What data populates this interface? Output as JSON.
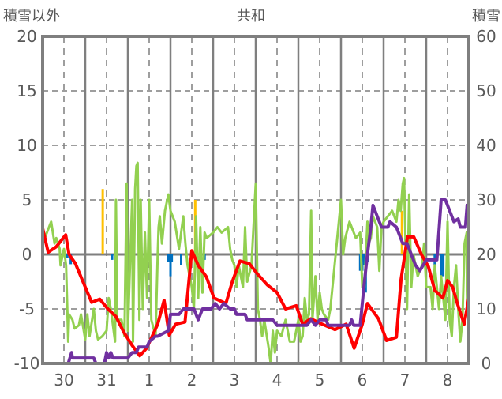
{
  "chart_data": {
    "type": "line",
    "title": "共和",
    "ylabel_left": "積雪以外",
    "ylabel_right": "積雪",
    "ylim_left": [
      -10,
      20
    ],
    "ylim_right": [
      0,
      60
    ],
    "yticks_left": [
      "20",
      "15",
      "10",
      "5",
      "0",
      "-5",
      "-10"
    ],
    "yticks_right": [
      "60",
      "50",
      "40",
      "30",
      "20",
      "10",
      "0"
    ],
    "xlim_days": [
      0,
      10
    ],
    "x_tick_labels": [
      "30",
      "31",
      "1",
      "2",
      "3",
      "4",
      "5",
      "6",
      "7",
      "8"
    ],
    "grid": true,
    "colors": {
      "temperature": "#ff0000",
      "other": "#92d050",
      "snow": "#7030a0",
      "precip": "#0070c0",
      "sun": "#ffc000",
      "axis": "#7f7f7f"
    },
    "series": [
      {
        "name": "red-line",
        "axis": "left",
        "points": [
          [
            0,
            2.4
          ],
          [
            0.13,
            0.2
          ],
          [
            0.32,
            0.7
          ],
          [
            0.54,
            1.8
          ],
          [
            0.62,
            0
          ],
          [
            0.77,
            -0.85
          ],
          [
            1.0,
            -3
          ],
          [
            1.15,
            -4.4
          ],
          [
            1.34,
            -4.1
          ],
          [
            1.53,
            -5
          ],
          [
            1.72,
            -5.7
          ],
          [
            1.9,
            -7.1
          ],
          [
            2.1,
            -8.35
          ],
          [
            2.28,
            -9.3
          ],
          [
            2.44,
            -8.6
          ],
          [
            2.7,
            -6.4
          ],
          [
            2.85,
            -4.2
          ],
          [
            2.97,
            -7.4
          ],
          [
            3.12,
            -6.4
          ],
          [
            3.34,
            -6.2
          ],
          [
            3.5,
            0.35
          ],
          [
            3.65,
            -1
          ],
          [
            3.84,
            -2.05
          ],
          [
            4.02,
            -4
          ],
          [
            4.3,
            -4.5
          ],
          [
            4.45,
            -2.5
          ],
          [
            4.63,
            -0.6
          ],
          [
            4.85,
            -0.85
          ],
          [
            5.04,
            -1.8
          ],
          [
            5.27,
            -2.8
          ],
          [
            5.5,
            -3.5
          ],
          [
            5.7,
            -5
          ],
          [
            5.95,
            -4.7
          ],
          [
            6.1,
            -6.4
          ],
          [
            6.29,
            -5.9
          ],
          [
            6.56,
            -6.4
          ],
          [
            6.86,
            -6.9
          ],
          [
            7.12,
            -6.4
          ],
          [
            7.31,
            -8.6
          ],
          [
            7.5,
            -6.4
          ],
          [
            7.62,
            -4.5
          ],
          [
            7.88,
            -5.9
          ],
          [
            8.07,
            -7.9
          ],
          [
            8.3,
            -7.6
          ],
          [
            8.41,
            -2.3
          ],
          [
            8.56,
            1.6
          ],
          [
            8.71,
            1.6
          ],
          [
            8.9,
            -0.1
          ],
          [
            9.05,
            -1.1
          ],
          [
            9.2,
            -3.3
          ],
          [
            9.39,
            -4
          ],
          [
            9.5,
            -2.4
          ],
          [
            9.62,
            -3
          ],
          [
            9.73,
            -4.5
          ],
          [
            9.89,
            -6.4
          ],
          [
            10,
            -4
          ]
        ]
      },
      {
        "name": "green-line",
        "axis": "left",
        "points": [
          [
            0,
            1
          ],
          [
            0.1,
            2
          ],
          [
            0.2,
            3
          ],
          [
            0.28,
            1
          ],
          [
            0.32,
            1.5
          ],
          [
            0.4,
            0.5
          ],
          [
            0.42,
            -1
          ],
          [
            0.5,
            0.5
          ],
          [
            0.55,
            -1
          ],
          [
            0.6,
            -8
          ],
          [
            0.62,
            -5.5
          ],
          [
            0.7,
            -6
          ],
          [
            0.75,
            -6.8
          ],
          [
            0.85,
            -6.5
          ],
          [
            0.9,
            -5.5
          ],
          [
            1.0,
            -7.8
          ],
          [
            1.05,
            -5.5
          ],
          [
            1.1,
            -7.5
          ],
          [
            1.2,
            -5
          ],
          [
            1.25,
            -7
          ],
          [
            1.3,
            -7.8
          ],
          [
            1.4,
            -7.5
          ],
          [
            1.5,
            -7
          ],
          [
            1.55,
            -4
          ],
          [
            1.6,
            -5
          ],
          [
            1.7,
            -8
          ],
          [
            1.72,
            5
          ],
          [
            1.75,
            -6
          ],
          [
            1.85,
            -6
          ],
          [
            1.92,
            -7.5
          ],
          [
            1.97,
            6.5
          ],
          [
            2.0,
            -7
          ],
          [
            2.1,
            5
          ],
          [
            2.12,
            -8
          ],
          [
            2.17,
            6
          ],
          [
            2.2,
            8.1
          ],
          [
            2.23,
            8.4
          ],
          [
            2.27,
            -6
          ],
          [
            2.3,
            5
          ],
          [
            2.35,
            -5
          ],
          [
            2.4,
            2
          ],
          [
            2.45,
            -4
          ],
          [
            2.5,
            5
          ],
          [
            2.55,
            -6
          ],
          [
            2.65,
            -7.5
          ],
          [
            2.7,
            0
          ],
          [
            2.72,
            2.5
          ],
          [
            2.75,
            3.5
          ],
          [
            2.8,
            1
          ],
          [
            2.87,
            4
          ],
          [
            2.95,
            5.5
          ],
          [
            3.0,
            4
          ],
          [
            3.1,
            3
          ],
          [
            3.2,
            0.5
          ],
          [
            3.3,
            3.5
          ],
          [
            3.35,
            1
          ],
          [
            3.4,
            -1
          ],
          [
            3.45,
            -2
          ],
          [
            3.5,
            -3
          ],
          [
            3.55,
            -5
          ],
          [
            3.6,
            3.5
          ],
          [
            3.65,
            -4
          ],
          [
            3.7,
            2.5
          ],
          [
            3.75,
            -3.5
          ],
          [
            3.8,
            2
          ],
          [
            3.85,
            1.5
          ],
          [
            4.0,
            2
          ],
          [
            4.1,
            2.5
          ],
          [
            4.2,
            2
          ],
          [
            4.35,
            2.5
          ],
          [
            4.4,
            0.5
          ],
          [
            4.45,
            -0.5
          ],
          [
            4.5,
            -1
          ],
          [
            4.55,
            -3
          ],
          [
            4.6,
            -1
          ],
          [
            4.7,
            -3
          ],
          [
            4.75,
            2.5
          ],
          [
            4.8,
            -2.5
          ],
          [
            4.9,
            -1
          ],
          [
            5.0,
            6.5
          ],
          [
            5.05,
            -5
          ],
          [
            5.1,
            -6
          ],
          [
            5.15,
            -7.5
          ],
          [
            5.2,
            -6
          ],
          [
            5.3,
            -8.5
          ],
          [
            5.35,
            -10
          ],
          [
            5.4,
            -7
          ],
          [
            5.45,
            -9
          ],
          [
            5.5,
            -7
          ],
          [
            5.6,
            -7.5
          ],
          [
            5.7,
            -6
          ],
          [
            5.8,
            -8
          ],
          [
            5.9,
            -8
          ],
          [
            6.0,
            -6
          ],
          [
            6.05,
            -8
          ],
          [
            6.1,
            -7.5
          ],
          [
            6.15,
            -4
          ],
          [
            6.2,
            -6
          ],
          [
            6.25,
            -5.5
          ],
          [
            6.3,
            4
          ],
          [
            6.33,
            -6
          ],
          [
            6.4,
            -2
          ],
          [
            6.45,
            -6
          ],
          [
            6.5,
            -3.5
          ],
          [
            6.55,
            -5
          ],
          [
            6.6,
            -5.5
          ],
          [
            6.7,
            -6
          ],
          [
            6.75,
            -5
          ],
          [
            7.0,
            5
          ],
          [
            7.05,
            0
          ],
          [
            7.1,
            1.5
          ],
          [
            7.2,
            3
          ],
          [
            7.35,
            1.5
          ],
          [
            7.45,
            2
          ],
          [
            7.5,
            -3
          ],
          [
            7.55,
            -3
          ],
          [
            7.62,
            3
          ],
          [
            7.65,
            1
          ],
          [
            7.7,
            1.5
          ],
          [
            7.75,
            3.5
          ],
          [
            7.8,
            3
          ],
          [
            7.85,
            2.5
          ],
          [
            7.9,
            -1.5
          ],
          [
            7.95,
            2.5
          ],
          [
            8.0,
            3
          ],
          [
            8.1,
            3.5
          ],
          [
            8.2,
            4
          ],
          [
            8.3,
            3
          ],
          [
            8.35,
            5
          ],
          [
            8.4,
            4
          ],
          [
            8.45,
            6.5
          ],
          [
            8.48,
            7
          ],
          [
            8.52,
            0
          ],
          [
            8.55,
            -5
          ],
          [
            8.6,
            5.5
          ],
          [
            8.65,
            -3
          ],
          [
            8.7,
            0
          ],
          [
            8.8,
            -2
          ],
          [
            8.9,
            -1
          ],
          [
            8.95,
            1
          ],
          [
            9.0,
            -3
          ],
          [
            9.1,
            -3
          ],
          [
            9.15,
            -5
          ],
          [
            9.2,
            -1
          ],
          [
            9.3,
            -5
          ],
          [
            9.35,
            -2
          ],
          [
            9.45,
            -6
          ],
          [
            9.5,
            3
          ],
          [
            9.55,
            -6
          ],
          [
            9.6,
            -7.5
          ],
          [
            9.65,
            -3
          ],
          [
            9.7,
            -1
          ],
          [
            9.75,
            -5
          ],
          [
            9.8,
            -8
          ],
          [
            9.85,
            -6
          ],
          [
            9.9,
            1
          ],
          [
            9.95,
            2
          ],
          [
            9.98,
            -5
          ],
          [
            10,
            -5
          ]
        ]
      },
      {
        "name": "purple-line",
        "axis": "right",
        "points": [
          [
            0,
            0
          ],
          [
            0.6,
            0
          ],
          [
            0.68,
            2
          ],
          [
            0.7,
            1
          ],
          [
            1.2,
            1
          ],
          [
            1.25,
            0
          ],
          [
            1.45,
            0
          ],
          [
            1.5,
            2
          ],
          [
            1.55,
            1
          ],
          [
            1.6,
            2
          ],
          [
            1.65,
            1
          ],
          [
            2.0,
            1
          ],
          [
            2.1,
            2
          ],
          [
            2.2,
            2
          ],
          [
            2.25,
            3
          ],
          [
            2.45,
            3
          ],
          [
            2.5,
            4
          ],
          [
            2.65,
            5
          ],
          [
            2.7,
            5
          ],
          [
            2.95,
            6
          ],
          [
            3.0,
            9
          ],
          [
            3.2,
            9
          ],
          [
            3.3,
            10
          ],
          [
            3.55,
            10
          ],
          [
            3.65,
            8
          ],
          [
            3.75,
            10
          ],
          [
            3.95,
            10
          ],
          [
            4.05,
            11
          ],
          [
            4.15,
            10
          ],
          [
            4.25,
            11
          ],
          [
            4.4,
            10
          ],
          [
            4.5,
            10
          ],
          [
            4.55,
            9
          ],
          [
            4.75,
            9
          ],
          [
            4.8,
            8
          ],
          [
            5.4,
            8
          ],
          [
            5.5,
            7
          ],
          [
            6.2,
            7
          ],
          [
            6.3,
            8
          ],
          [
            6.4,
            7
          ],
          [
            6.5,
            8
          ],
          [
            6.65,
            8
          ],
          [
            6.7,
            7
          ],
          [
            7.2,
            7
          ],
          [
            7.25,
            8
          ],
          [
            7.3,
            7
          ],
          [
            7.45,
            7
          ],
          [
            7.55,
            15
          ],
          [
            7.62,
            20
          ],
          [
            7.7,
            25
          ],
          [
            7.75,
            29
          ],
          [
            7.85,
            27
          ],
          [
            7.95,
            25
          ],
          [
            8.1,
            25
          ],
          [
            8.15,
            26
          ],
          [
            8.3,
            25
          ],
          [
            8.45,
            22
          ],
          [
            8.55,
            22
          ],
          [
            8.65,
            20
          ],
          [
            8.75,
            18
          ],
          [
            8.85,
            17
          ],
          [
            9.0,
            19
          ],
          [
            9.25,
            19
          ],
          [
            9.35,
            30
          ],
          [
            9.45,
            30
          ],
          [
            9.55,
            28
          ],
          [
            9.65,
            26
          ],
          [
            9.75,
            26.5
          ],
          [
            9.8,
            25
          ],
          [
            9.92,
            25
          ],
          [
            9.96,
            29
          ],
          [
            10,
            29
          ]
        ]
      }
    ],
    "bars": [
      {
        "name": "blue-bars",
        "axis": "left",
        "points": [
          [
            0.0,
            -0.5
          ],
          [
            0.58,
            -0.3
          ],
          [
            0.66,
            -0.9
          ],
          [
            1.63,
            -0.5
          ],
          [
            2.95,
            -0.7
          ],
          [
            2.98,
            -0.7
          ],
          [
            3.0,
            -2
          ],
          [
            3.03,
            -0.7
          ],
          [
            3.25,
            -1
          ],
          [
            3.8,
            -0.5
          ],
          [
            7.45,
            -1.5
          ],
          [
            7.5,
            -1.5
          ],
          [
            7.55,
            -1
          ],
          [
            7.58,
            -3.5
          ],
          [
            7.62,
            -0.7
          ],
          [
            9.2,
            -1
          ],
          [
            9.35,
            -3.5
          ],
          [
            9.4,
            -2
          ]
        ]
      },
      {
        "name": "orange-bars",
        "axis": "left",
        "points": [
          [
            1.41,
            6
          ],
          [
            3.58,
            5
          ],
          [
            8.43,
            4
          ]
        ]
      }
    ]
  }
}
